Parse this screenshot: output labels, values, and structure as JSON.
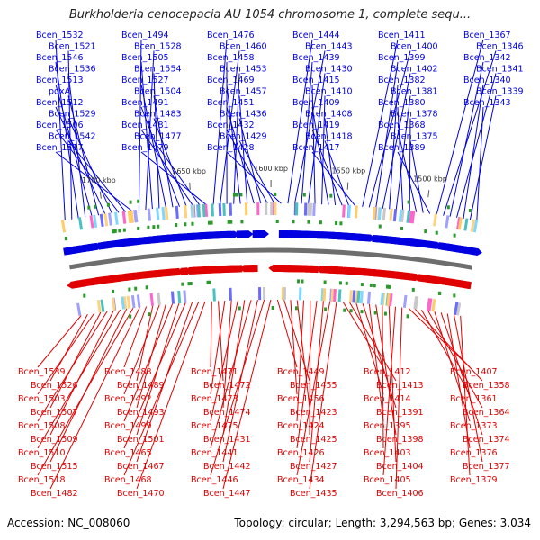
{
  "title": "Burkholderia cenocepacia AU 1054 chromosome 1, complete sequ...",
  "footer": {
    "accession": "Accession: NC_008060",
    "topology": "Topology: circular; Length: 3,294,563 bp; Genes: 3,034"
  },
  "colors": {
    "forward": "#0000e0",
    "reverse": "#e00000",
    "backbone": "#6e6e6e",
    "marker": "#2a9a2a"
  },
  "ticks": [
    {
      "label": "1700 kbp",
      "ratio": 0.1
    },
    {
      "label": "1650 kbp",
      "ratio": 0.31
    },
    {
      "label": "1600 kbp",
      "ratio": 0.5
    },
    {
      "label": "1550 kbp",
      "ratio": 0.68
    },
    {
      "label": "1500 kbp",
      "ratio": 0.87
    }
  ],
  "forward_labels": [
    "Bcen_1532",
    "Bcen_1521",
    "Bcen_1546",
    "Bcen_1536",
    "Bcen_1513",
    "pdxA",
    "Bcen_1512",
    "Bcen_1529",
    "Bcen_1506",
    "Bcen_1542",
    "Bcen_1517",
    "Bcen_1494",
    "Bcen_1528",
    "Bcen_1505",
    "Bcen_1554",
    "Bcen_1527",
    "Bcen_1504",
    "Bcen_1491",
    "Bcen_1483",
    "Bcen_1481",
    "Bcen_1477",
    "Bcen_1479",
    "Bcen_1476",
    "Bcen_1460",
    "Bcen_1458",
    "Bcen_1453",
    "Bcen_1469",
    "Bcen_1457",
    "Bcen_1451",
    "Bcen_1436",
    "Bcen_1432",
    "Bcen_1429",
    "Bcen_1428",
    "Bcen_1444",
    "Bcen_1443",
    "Bcen_1439",
    "Bcen_1430",
    "Bcen_1415",
    "Bcen_1410",
    "Bcen_1409",
    "Bcen_1408",
    "Bcen_1419",
    "Bcen_1418",
    "Bcen_1417",
    "Bcen_1411",
    "Bcen_1400",
    "Bcen_1399",
    "Bcen_1402",
    "Bcen_1382",
    "Bcen_1381",
    "Bcen_1380",
    "Bcen_1378",
    "Bcen_1368",
    "Bcen_1375",
    "Bcen_1389",
    "Bcen_1367",
    "Bcen_1346",
    "Bcen_1342",
    "Bcen_1341",
    "Bcen_1340",
    "Bcen_1339",
    "Bcen_1343"
  ],
  "reverse_labels": [
    "Bcen_1539",
    "Bcen_1526",
    "Bcen_1503",
    "Bcen_1507",
    "Bcen_1508",
    "Bcen_1509",
    "Bcen_1510",
    "Bcen_1515",
    "Bcen_1518",
    "Bcen_1482",
    "Bcen_1488",
    "Bcen_1489",
    "Bcen_1492",
    "Bcen_1493",
    "Bcen_1499",
    "Bcen_1501",
    "Bcen_1465",
    "Bcen_1467",
    "Bcen_1468",
    "Bcen_1470",
    "Bcen_1471",
    "Bcen_1472",
    "Bcen_1473",
    "Bcen_1474",
    "Bcen_1475",
    "Bcen_1431",
    "Bcen_1441",
    "Bcen_1442",
    "Bcen_1446",
    "Bcen_1447",
    "Bcen_1449",
    "Bcen_1455",
    "Bcen_1456",
    "Bcen_1423",
    "Bcen_1424",
    "Bcen_1425",
    "Bcen_1426",
    "Bcen_1427",
    "Bcen_1434",
    "Bcen_1435",
    "Bcen_1412",
    "Bcen_1413",
    "Bcen_1414",
    "Bcen_1391",
    "Bcen_1395",
    "Bcen_1398",
    "Bcen_1403",
    "Bcen_1404",
    "Bcen_1405",
    "Bcen_1406",
    "Bcen_1407",
    "Bcen_1358",
    "Bcen_1361",
    "Bcen_1364",
    "Bcen_1373",
    "Bcen_1374",
    "Bcen_1376",
    "Bcen_1377",
    "Bcen_1379"
  ]
}
